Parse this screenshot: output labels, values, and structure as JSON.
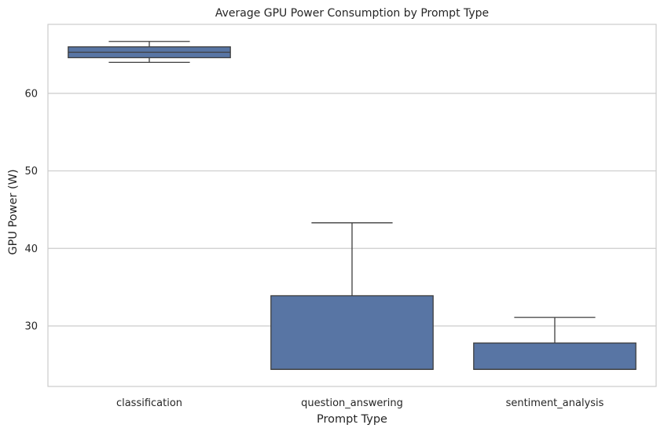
{
  "chart_data": {
    "type": "box",
    "title": "Average GPU Power Consumption by Prompt Type",
    "xlabel": "Prompt Type",
    "ylabel": "GPU Power (W)",
    "categories": [
      "classification",
      "question_answering",
      "sentiment_analysis"
    ],
    "boxes": [
      {
        "category": "classification",
        "whisker_low": 64.0,
        "q1": 64.6,
        "median": 65.3,
        "q3": 66.0,
        "whisker_high": 66.7
      },
      {
        "category": "question_answering",
        "whisker_low": 24.4,
        "q1": 24.4,
        "median": 24.4,
        "q3": 33.9,
        "whisker_high": 43.3
      },
      {
        "category": "sentiment_analysis",
        "whisker_low": 24.4,
        "q1": 24.4,
        "median": 24.4,
        "q3": 27.8,
        "whisker_high": 31.1
      }
    ],
    "yticks": [
      30,
      40,
      50,
      60
    ],
    "ylim": [
      22.2,
      68.9
    ],
    "grid": true,
    "colors": {
      "box": "#5875a4",
      "line": "#3f3f3f",
      "grid": "#cccccc",
      "spine": "#cccccc"
    }
  }
}
